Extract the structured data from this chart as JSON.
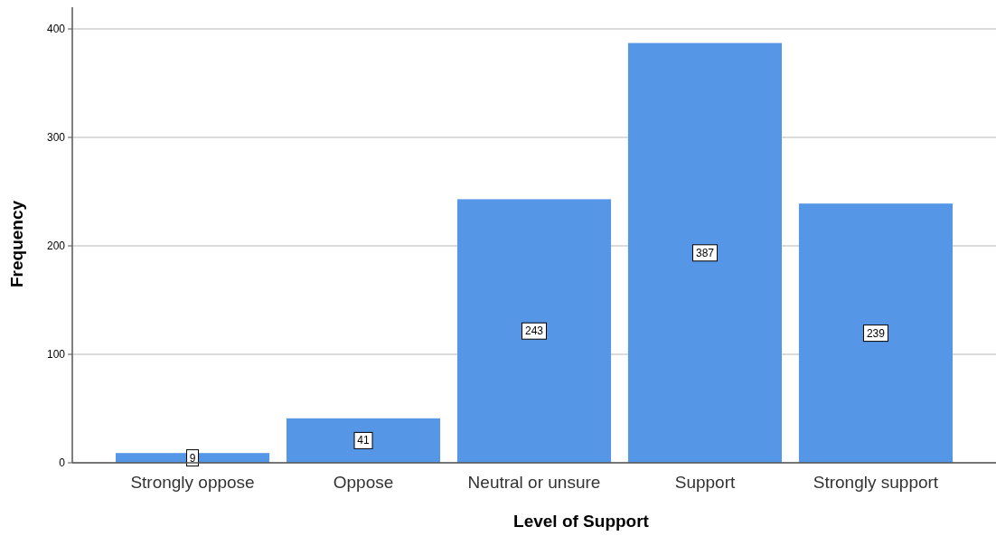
{
  "chart_data": {
    "type": "bar",
    "xlabel": "Level of Support",
    "ylabel": "Frequency",
    "categories": [
      "Strongly oppose",
      "Oppose",
      "Neutral or unsure",
      "Support",
      "Strongly support"
    ],
    "values": [
      9,
      41,
      243,
      387,
      239
    ],
    "color": "#5596e6",
    "ylim": [
      0,
      420
    ],
    "yticks": [
      0,
      100,
      200,
      300,
      400
    ],
    "grid": "y",
    "data_labels": true
  }
}
